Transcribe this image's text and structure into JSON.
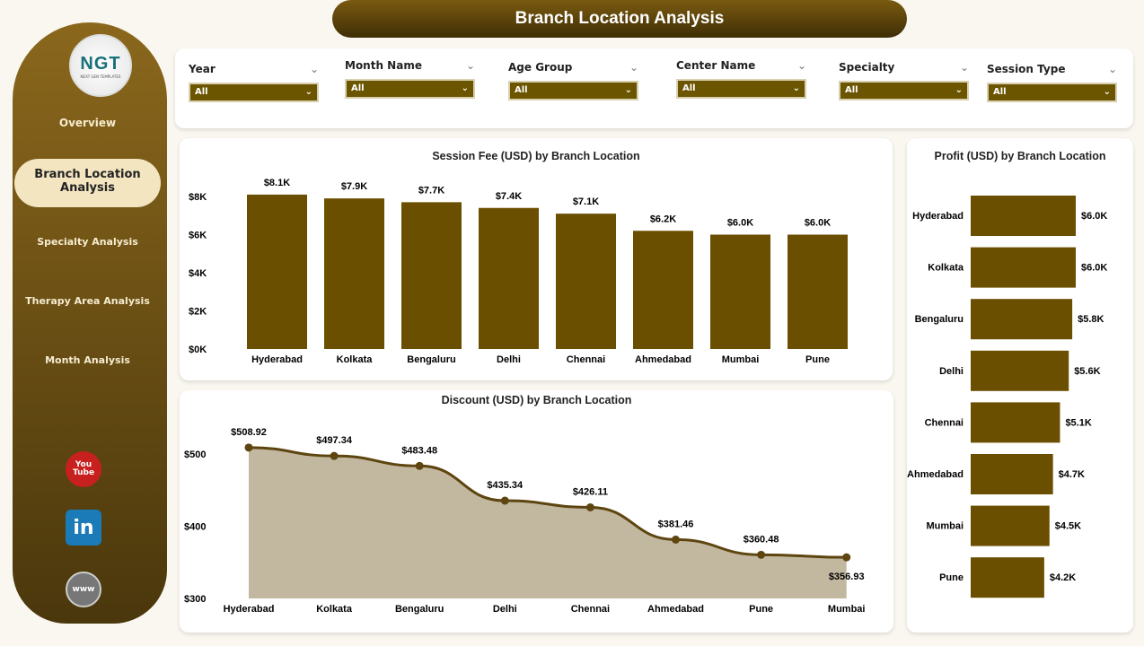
{
  "title": "Branch Location Analysis",
  "logo": {
    "text": "NGT",
    "sub": "NEXT GEN TEMPLATES"
  },
  "nav": [
    {
      "label": "Overview"
    },
    {
      "label": "Branch Location Analysis",
      "active": true
    },
    {
      "label": "Specialty Analysis"
    },
    {
      "label": "Therapy Area Analysis"
    },
    {
      "label": "Month Analysis"
    }
  ],
  "social": [
    {
      "icon": "youtube-icon",
      "label": "You Tube"
    },
    {
      "icon": "linkedin-icon",
      "label": "in"
    },
    {
      "icon": "globe-icon",
      "label": "www"
    }
  ],
  "filters": [
    {
      "label": "Year",
      "value": "All"
    },
    {
      "label": "Month Name",
      "value": "All"
    },
    {
      "label": "Age Group",
      "value": "All"
    },
    {
      "label": "Center Name",
      "value": "All"
    },
    {
      "label": "Specialty",
      "value": "All"
    },
    {
      "label": "Session Type",
      "value": "All"
    }
  ],
  "colors": {
    "bar": "#6b4f00",
    "area": "#c2b8a0",
    "line": "#5e4510"
  },
  "chart_data": [
    {
      "type": "bar",
      "title": "Session Fee (USD) by Branch Location",
      "categories": [
        "Hyderabad",
        "Kolkata",
        "Bengaluru",
        "Delhi",
        "Chennai",
        "Ahmedabad",
        "Mumbai",
        "Pune"
      ],
      "values": [
        8.1,
        7.9,
        7.7,
        7.4,
        7.1,
        6.2,
        6.0,
        6.0
      ],
      "labels": [
        "$8.1K",
        "$7.9K",
        "$7.7K",
        "$7.4K",
        "$7.1K",
        "$6.2K",
        "$6.0K",
        "$6.0K"
      ],
      "yticks": [
        "$0K",
        "$2K",
        "$4K",
        "$6K",
        "$8K"
      ],
      "ylim": [
        0,
        8
      ]
    },
    {
      "type": "area",
      "title": "Discount (USD) by Branch Location",
      "categories": [
        "Hyderabad",
        "Kolkata",
        "Bengaluru",
        "Delhi",
        "Chennai",
        "Ahmedabad",
        "Pune",
        "Mumbai"
      ],
      "values": [
        508.92,
        497.34,
        483.48,
        435.34,
        426.11,
        381.46,
        360.48,
        356.93
      ],
      "labels": [
        "$508.92",
        "$497.34",
        "$483.48",
        "$435.34",
        "$426.11",
        "$381.46",
        "$360.48",
        "$356.93"
      ],
      "yticks": [
        "$300",
        "$400",
        "$500"
      ],
      "ylim": [
        300,
        500
      ]
    },
    {
      "type": "bar-horizontal",
      "title": "Profit (USD) by Branch Location",
      "categories": [
        "Hyderabad",
        "Kolkata",
        "Bengaluru",
        "Delhi",
        "Chennai",
        "Ahmedabad",
        "Mumbai",
        "Pune"
      ],
      "values": [
        6.0,
        6.0,
        5.8,
        5.6,
        5.1,
        4.7,
        4.5,
        4.2
      ],
      "labels": [
        "$6.0K",
        "$6.0K",
        "$5.8K",
        "$5.6K",
        "$5.1K",
        "$4.7K",
        "$4.5K",
        "$4.2K"
      ]
    }
  ]
}
